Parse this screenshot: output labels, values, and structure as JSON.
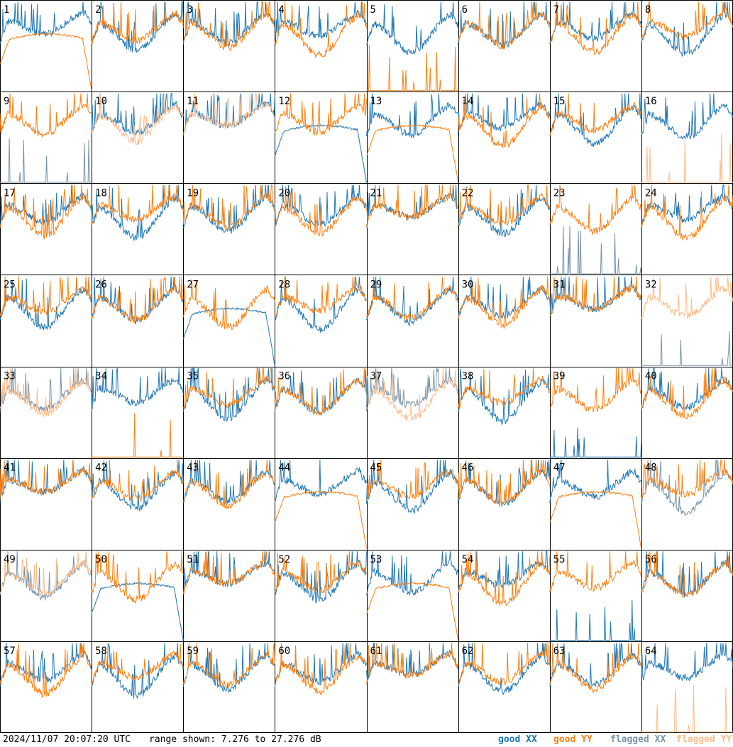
{
  "footer": {
    "timestamp": "2024/11/07 20:07:20 UTC",
    "range_text": "range shown: 7.276 to 27.276 dB"
  },
  "legend": {
    "good_xx": "good XX",
    "good_yy": "good YY",
    "flagged_xx": "flagged XX",
    "flagged_yy": "flagged YY"
  },
  "colors": {
    "good_xx": "#1f77b4",
    "good_yy": "#ff7f0e",
    "flagged_xx": "#7a93a8",
    "flagged_yy": "#ffbb88"
  },
  "chart_data": {
    "type": "line",
    "grid": {
      "rows": 8,
      "cols": 8
    },
    "ylim": [
      7.276,
      27.276
    ],
    "ylabel": "",
    "xlabel": "",
    "panels": [
      {
        "id": "1",
        "xx": "good",
        "yy": "good",
        "yy_shape": "rolloff"
      },
      {
        "id": "2",
        "xx": "good",
        "yy": "good"
      },
      {
        "id": "3",
        "xx": "good",
        "yy": "good"
      },
      {
        "id": "4",
        "xx": "good",
        "yy": "good"
      },
      {
        "id": "5",
        "xx": "good",
        "yy": "good",
        "yy_shape": "flat_spikes"
      },
      {
        "id": "6",
        "xx": "good",
        "yy": "good"
      },
      {
        "id": "7",
        "xx": "good",
        "yy": "good"
      },
      {
        "id": "8",
        "xx": "good",
        "yy": "good"
      },
      {
        "id": "9",
        "xx": "flagged",
        "yy": "good",
        "xx_shape": "flat_spikes"
      },
      {
        "id": "10",
        "xx": "good",
        "yy": "flagged"
      },
      {
        "id": "11",
        "xx": "good",
        "yy": "flagged"
      },
      {
        "id": "12",
        "xx": "good",
        "yy": "good",
        "xx_shape": "rolloff"
      },
      {
        "id": "13",
        "xx": "good",
        "yy": "good",
        "yy_shape": "rolloff"
      },
      {
        "id": "14",
        "xx": "good",
        "yy": "good"
      },
      {
        "id": "15",
        "xx": "good",
        "yy": "good"
      },
      {
        "id": "16",
        "xx": "good",
        "yy": "flagged",
        "yy_shape": "flat_spikes"
      },
      {
        "id": "17",
        "xx": "good",
        "yy": "good"
      },
      {
        "id": "18",
        "xx": "good",
        "yy": "good"
      },
      {
        "id": "19",
        "xx": "good",
        "yy": "good"
      },
      {
        "id": "20",
        "xx": "good",
        "yy": "good"
      },
      {
        "id": "21",
        "xx": "good",
        "yy": "good"
      },
      {
        "id": "22",
        "xx": "good",
        "yy": "good"
      },
      {
        "id": "23",
        "xx": "flagged",
        "yy": "good",
        "xx_shape": "flat_spikes"
      },
      {
        "id": "24",
        "xx": "good",
        "yy": "good"
      },
      {
        "id": "25",
        "xx": "good",
        "yy": "good"
      },
      {
        "id": "26",
        "xx": "good",
        "yy": "good"
      },
      {
        "id": "27",
        "xx": "good",
        "yy": "good",
        "xx_shape": "rolloff"
      },
      {
        "id": "28",
        "xx": "good",
        "yy": "good"
      },
      {
        "id": "29",
        "xx": "good",
        "yy": "good"
      },
      {
        "id": "30",
        "xx": "good",
        "yy": "good"
      },
      {
        "id": "31",
        "xx": "good",
        "yy": "good"
      },
      {
        "id": "32",
        "xx": "flagged",
        "yy": "flagged",
        "xx_shape": "flat_spikes"
      },
      {
        "id": "33",
        "xx": "flagged",
        "yy": "flagged"
      },
      {
        "id": "34",
        "xx": "good",
        "yy": "good",
        "yy_shape": "flat_spikes"
      },
      {
        "id": "35",
        "xx": "good",
        "yy": "good"
      },
      {
        "id": "36",
        "xx": "good",
        "yy": "good"
      },
      {
        "id": "37",
        "xx": "flagged",
        "yy": "flagged"
      },
      {
        "id": "38",
        "xx": "good",
        "yy": "good"
      },
      {
        "id": "39",
        "xx": "good",
        "yy": "good",
        "xx_shape": "flat_spikes"
      },
      {
        "id": "40",
        "xx": "good",
        "yy": "good"
      },
      {
        "id": "41",
        "xx": "good",
        "yy": "good"
      },
      {
        "id": "42",
        "xx": "good",
        "yy": "good"
      },
      {
        "id": "43",
        "xx": "good",
        "yy": "good"
      },
      {
        "id": "44",
        "xx": "good",
        "yy": "good",
        "yy_shape": "rolloff"
      },
      {
        "id": "45",
        "xx": "good",
        "yy": "good"
      },
      {
        "id": "46",
        "xx": "good",
        "yy": "good"
      },
      {
        "id": "47",
        "xx": "good",
        "yy": "good",
        "yy_shape": "rolloff"
      },
      {
        "id": "48",
        "xx": "flagged",
        "yy": "good"
      },
      {
        "id": "49",
        "xx": "flagged",
        "yy": "flagged"
      },
      {
        "id": "50",
        "xx": "good",
        "yy": "good",
        "xx_shape": "rolloff"
      },
      {
        "id": "51",
        "xx": "good",
        "yy": "good"
      },
      {
        "id": "52",
        "xx": "good",
        "yy": "good"
      },
      {
        "id": "53",
        "xx": "good",
        "yy": "good",
        "yy_shape": "rolloff"
      },
      {
        "id": "54",
        "xx": "good",
        "yy": "good"
      },
      {
        "id": "55",
        "xx": "good",
        "yy": "good",
        "xx_shape": "flat_spikes"
      },
      {
        "id": "56",
        "xx": "good",
        "yy": "good"
      },
      {
        "id": "57",
        "xx": "good",
        "yy": "good"
      },
      {
        "id": "58",
        "xx": "good",
        "yy": "good"
      },
      {
        "id": "59",
        "xx": "good",
        "yy": "good"
      },
      {
        "id": "60",
        "xx": "good",
        "yy": "good"
      },
      {
        "id": "61",
        "xx": "good",
        "yy": "good"
      },
      {
        "id": "62",
        "xx": "good",
        "yy": "good"
      },
      {
        "id": "63",
        "xx": "good",
        "yy": "good"
      },
      {
        "id": "64",
        "xx": "good",
        "yy": "flagged",
        "yy_shape": "flat_spikes"
      }
    ]
  }
}
